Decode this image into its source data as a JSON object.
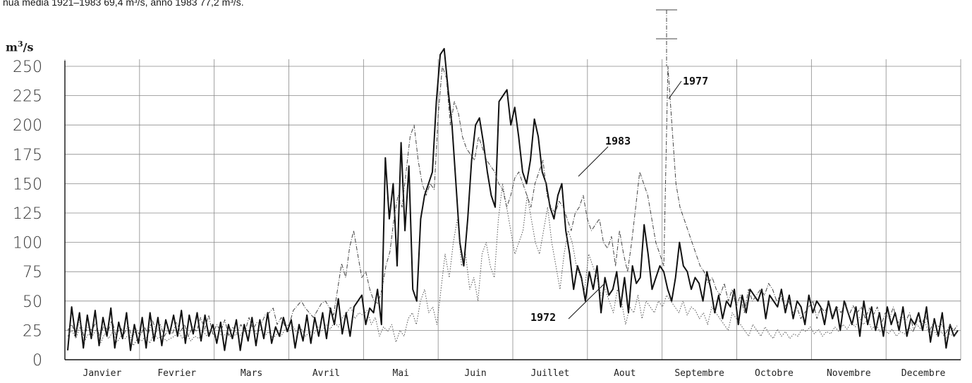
{
  "caption": "nua media 1921–1983 69,4 m³/s, anno 1983 77,2 m³/s.",
  "chart_data": {
    "type": "line",
    "ylabel_base": "m",
    "ylabel_exp": "3",
    "ylabel_rest": "/s",
    "ylim": [
      0,
      250
    ],
    "yticks": [
      0,
      25,
      50,
      75,
      100,
      125,
      150,
      175,
      200,
      225,
      250
    ],
    "grid": true,
    "months": [
      "Janvier",
      "Fevrier",
      "Mars",
      "Avril",
      "Mai",
      "Juin",
      "Juillet",
      "Aout",
      "Septembre",
      "Octobre",
      "Novembre",
      "Decembre"
    ],
    "series": [
      {
        "name": "1983",
        "style": "solid",
        "color": "#111111",
        "values": [
          8,
          45,
          20,
          40,
          10,
          38,
          18,
          42,
          12,
          36,
          20,
          44,
          10,
          32,
          18,
          40,
          8,
          30,
          14,
          36,
          10,
          40,
          16,
          36,
          12,
          34,
          22,
          38,
          20,
          42,
          14,
          38,
          22,
          40,
          16,
          38,
          20,
          30,
          14,
          32,
          8,
          30,
          18,
          34,
          8,
          30,
          16,
          36,
          12,
          34,
          18,
          40,
          14,
          28,
          20,
          36,
          24,
          34,
          10,
          30,
          16,
          38,
          14,
          36,
          20,
          40,
          18,
          44,
          30,
          52,
          22,
          40,
          20,
          45,
          50,
          55,
          30,
          44,
          40,
          60,
          30,
          172,
          120,
          150,
          80,
          185,
          110,
          165,
          60,
          50,
          120,
          140,
          150,
          160,
          220,
          260,
          265,
          230,
          200,
          150,
          100,
          80,
          120,
          170,
          200,
          206,
          185,
          160,
          140,
          130,
          220,
          225,
          230,
          200,
          215,
          190,
          160,
          150,
          170,
          205,
          190,
          160,
          150,
          130,
          120,
          140,
          150,
          110,
          90,
          60,
          80,
          70,
          50,
          75,
          60,
          80,
          40,
          70,
          55,
          60,
          75,
          45,
          70,
          40,
          80,
          65,
          70,
          115,
          90,
          60,
          70,
          80,
          75,
          60,
          50,
          70,
          100,
          80,
          75,
          60,
          70,
          65,
          50,
          75,
          60,
          40,
          55,
          35,
          50,
          45,
          60,
          30,
          55,
          40,
          60,
          55,
          50,
          60,
          35,
          55,
          50,
          45,
          60,
          40,
          55,
          35,
          50,
          45,
          30,
          55,
          40,
          50,
          45,
          30,
          50,
          35,
          45,
          25,
          50,
          40,
          30,
          45,
          20,
          50,
          30,
          45,
          25,
          40,
          20,
          45,
          30,
          40,
          25,
          45,
          20,
          35,
          30,
          40,
          25,
          45,
          15,
          35,
          20,
          40,
          10,
          30,
          20,
          25
        ]
      },
      {
        "name": "1977",
        "style": "dashdot",
        "color": "#444444",
        "values": [
          25,
          30,
          22,
          35,
          20,
          28,
          25,
          32,
          18,
          30,
          24,
          34,
          20,
          28,
          22,
          30,
          18,
          26,
          20,
          28,
          22,
          34,
          24,
          30,
          20,
          26,
          22,
          32,
          24,
          30,
          20,
          28,
          24,
          36,
          26,
          38,
          22,
          30,
          24,
          34,
          20,
          28,
          22,
          30,
          24,
          36,
          26,
          32,
          30,
          38,
          40,
          44,
          30,
          36,
          28,
          30,
          42,
          46,
          50,
          44,
          40,
          36,
          42,
          48,
          50,
          44,
          38,
          60,
          82,
          70,
          96,
          110,
          90,
          70,
          75,
          60,
          50,
          48,
          60,
          80,
          92,
          120,
          140,
          130,
          160,
          190,
          200,
          170,
          150,
          140,
          150,
          145,
          210,
          250,
          240,
          200,
          220,
          210,
          190,
          180,
          175,
          170,
          190,
          180,
          170,
          165,
          160,
          150,
          145,
          130,
          140,
          155,
          160,
          150,
          140,
          130,
          150,
          160,
          170,
          140,
          130,
          125,
          135,
          130,
          120,
          110,
          125,
          130,
          140,
          120,
          110,
          115,
          120,
          100,
          95,
          105,
          80,
          110,
          90,
          75,
          100,
          130,
          160,
          150,
          140,
          120,
          100,
          90,
          80,
          250,
          200,
          150,
          130,
          120,
          110,
          100,
          90,
          80,
          75,
          65,
          70,
          60,
          55,
          65,
          50,
          60,
          45,
          55,
          40,
          60,
          50,
          55,
          60,
          55,
          65,
          60,
          50,
          55,
          45,
          50,
          40,
          45,
          35,
          40,
          45,
          50,
          35,
          45,
          40,
          50,
          35,
          45,
          40,
          50,
          38,
          46,
          40,
          45,
          35,
          44,
          38,
          45,
          30,
          40,
          35,
          45,
          30,
          38,
          32,
          40,
          25,
          35,
          30,
          38,
          25,
          32,
          28,
          30,
          22,
          30,
          25,
          30
        ]
      },
      {
        "name": "1972",
        "style": "dotted",
        "color": "#555555",
        "values": [
          20,
          25,
          18,
          28,
          15,
          22,
          20,
          26,
          14,
          22,
          18,
          24,
          15,
          20,
          18,
          22,
          12,
          18,
          16,
          20,
          14,
          22,
          18,
          20,
          16,
          18,
          20,
          24,
          18,
          22,
          16,
          20,
          18,
          24,
          20,
          26,
          18,
          22,
          20,
          24,
          18,
          22,
          20,
          26,
          24,
          30,
          22,
          26,
          20,
          24,
          18,
          22,
          20,
          26,
          24,
          28,
          22,
          26,
          20,
          24,
          22,
          28,
          24,
          30,
          26,
          32,
          28,
          36,
          40,
          45,
          35,
          40,
          38,
          42,
          30,
          36,
          20,
          28,
          24,
          30,
          15,
          25,
          20,
          35,
          40,
          30,
          50,
          60,
          40,
          45,
          30,
          60,
          90,
          70,
          100,
          120,
          80,
          90,
          60,
          70,
          50,
          90,
          100,
          80,
          70,
          120,
          150,
          130,
          110,
          90,
          100,
          110,
          140,
          120,
          100,
          90,
          110,
          130,
          100,
          80,
          60,
          90,
          110,
          100,
          80,
          70,
          60,
          90,
          80,
          70,
          55,
          60,
          50,
          40,
          60,
          50,
          30,
          45,
          40,
          55,
          35,
          50,
          45,
          40,
          50,
          45,
          55,
          50,
          45,
          40,
          50,
          38,
          45,
          42,
          35,
          40,
          30,
          45,
          40,
          35,
          30,
          25,
          40,
          35,
          30,
          25,
          20,
          30,
          25,
          20,
          28,
          22,
          18,
          26,
          20,
          24,
          18,
          22,
          20,
          26,
          24,
          28,
          22,
          26,
          20,
          24,
          22,
          28,
          24,
          30,
          26,
          32,
          28,
          36,
          30,
          34,
          26,
          30,
          24,
          28,
          22,
          26,
          20,
          24,
          22,
          28,
          24,
          30,
          26,
          32,
          22,
          26,
          20,
          24,
          18,
          22,
          20,
          24
        ]
      }
    ],
    "annotations": [
      "1977",
      "1983",
      "1972"
    ]
  }
}
